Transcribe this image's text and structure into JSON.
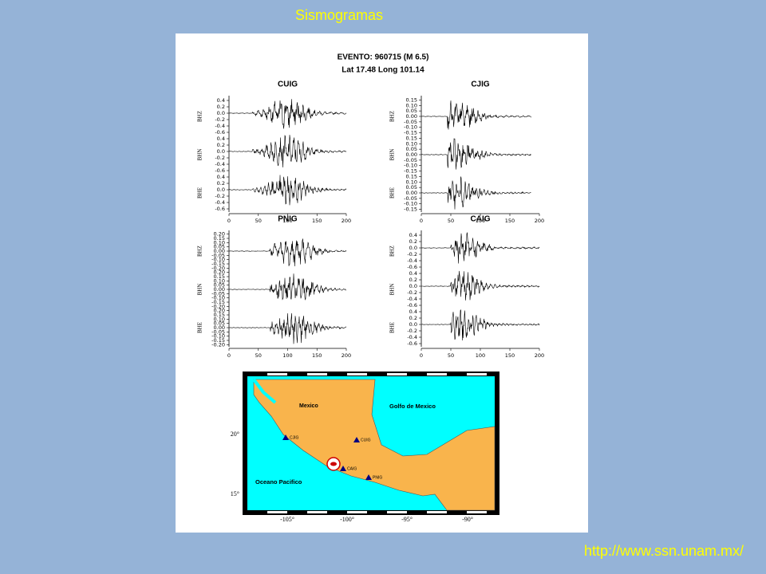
{
  "title": "Sismogramas",
  "url": "http://www.ssn.unam.mx/",
  "figure": {
    "event": "EVENTO: 960715 (M 6.5)",
    "location": "Lat 17.48 Long 101.14",
    "panels": [
      {
        "station": "CUIG",
        "channels": [
          "BHZ",
          "BHN",
          "BHE"
        ],
        "yticks": [
          "0.4",
          "0.2",
          "0.0",
          "-0.2",
          "-0.4",
          "-0.6"
        ],
        "xticks": [
          "0",
          "50",
          "100",
          "150",
          "200"
        ]
      },
      {
        "station": "CJIG",
        "channels": [
          "BHZ",
          "BHN",
          "BHE"
        ],
        "yticks": [
          "0.15",
          "0.10",
          "0.05",
          "0.00",
          "-0.05",
          "-0.10",
          "-0.15"
        ],
        "xticks": [
          "0",
          "50",
          "100",
          "150",
          "200"
        ]
      },
      {
        "station": "PNIG",
        "channels": [
          "BHZ",
          "BHN",
          "BHE"
        ],
        "yticks": [
          "0.20",
          "0.15",
          "0.10",
          "0.05",
          "0.00",
          "-0.05",
          "-0.10",
          "-0.15",
          "-0.20"
        ],
        "xticks": [
          "0",
          "50",
          "100",
          "150",
          "200"
        ]
      },
      {
        "station": "CAIG",
        "channels": [
          "BHZ",
          "BHN",
          "BHE"
        ],
        "yticks": [
          "0.4",
          "0.2",
          "0.0",
          "-0.2",
          "-0.4",
          "-0.6"
        ],
        "xticks": [
          "0",
          "50",
          "100",
          "150",
          "200"
        ]
      }
    ]
  },
  "map": {
    "labels": {
      "land": "Mexico",
      "gulf": "Golfo de Mexico",
      "ocean": "Oceano Pacifico"
    },
    "stations": [
      "CJIG",
      "CUIG",
      "CAIG",
      "PNIG"
    ],
    "lat_ticks": [
      "20°",
      "15°"
    ],
    "lon_ticks": [
      "-105°",
      "-100°",
      "-95°",
      "-90°"
    ]
  }
}
